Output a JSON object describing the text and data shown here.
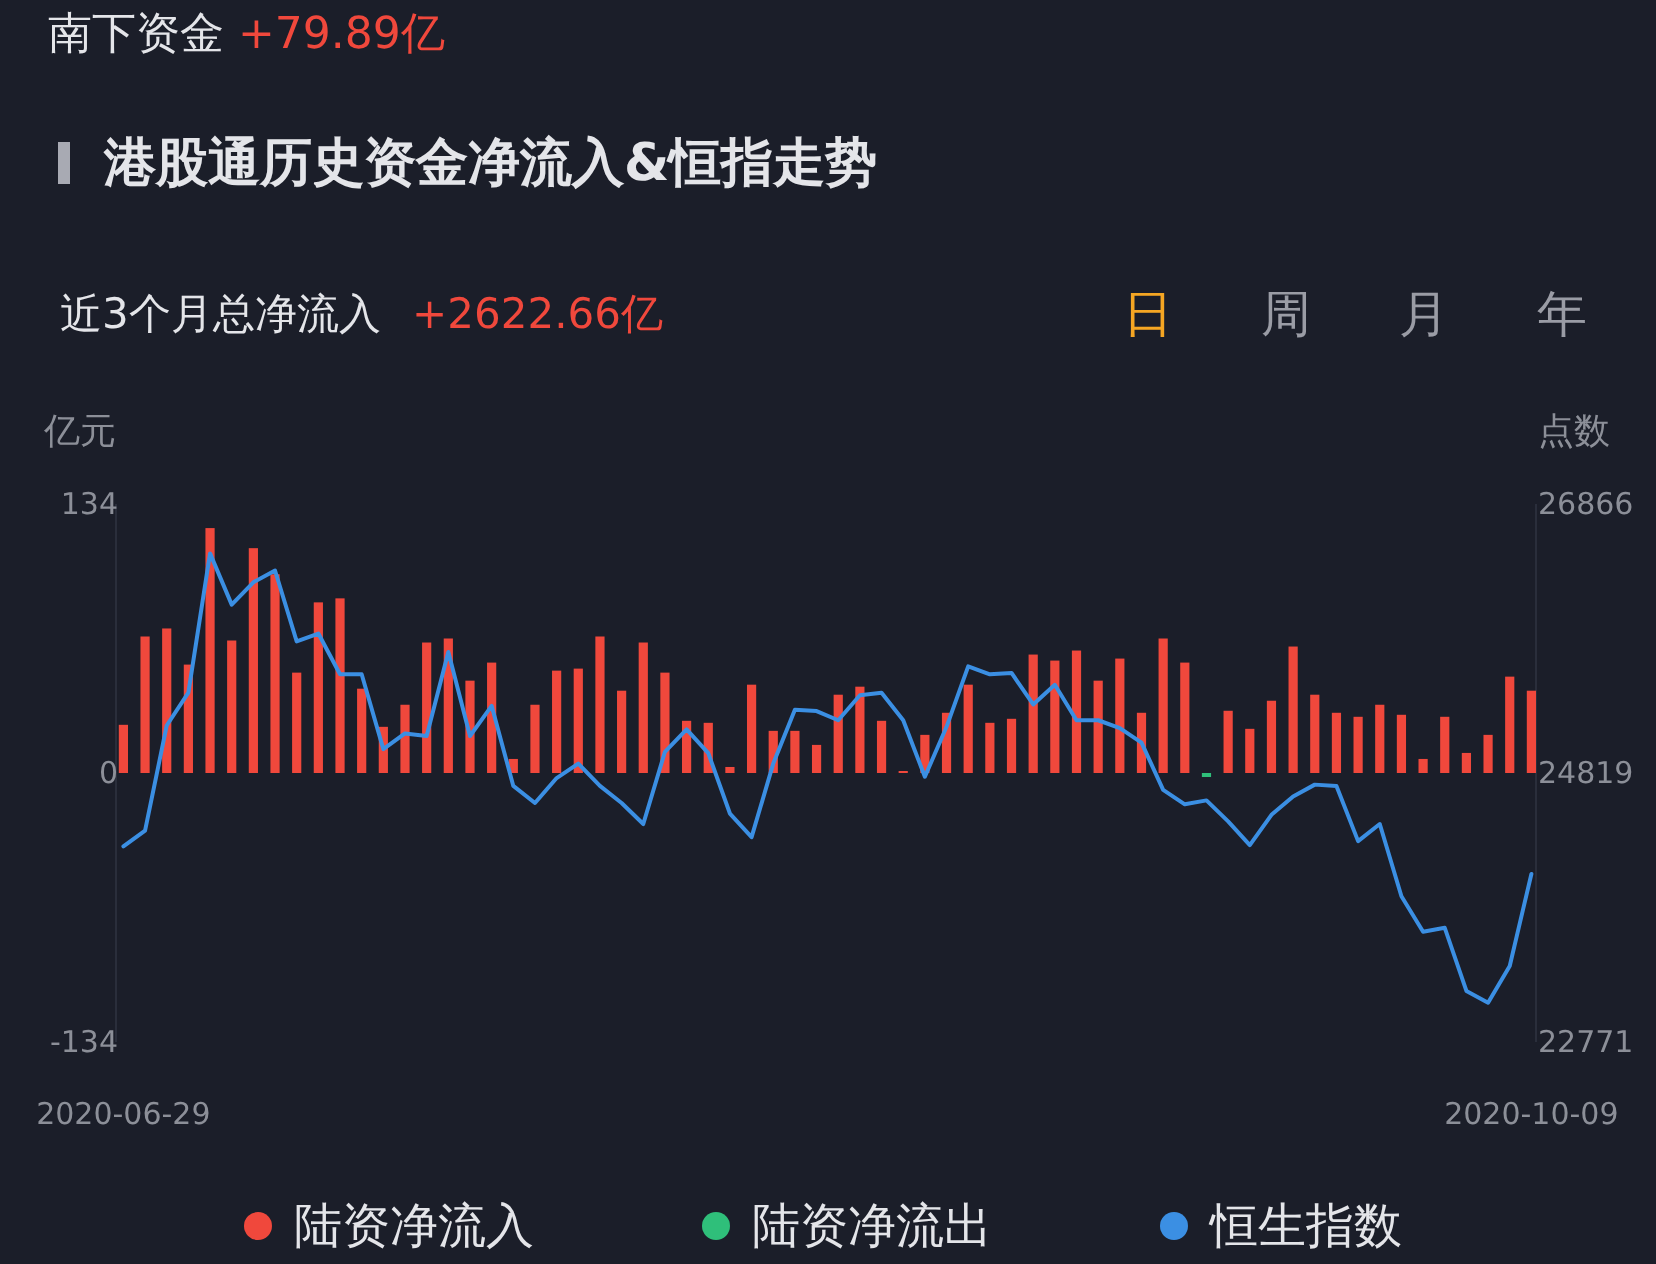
{
  "chart_data": {
    "type": "bar",
    "title": "港股通历史资金净流入&恒指走势",
    "subtitle": "近3个月总净流入 +2622.66亿",
    "annotations": [
      "南下资金 +79.89亿",
      "日",
      "周",
      "月",
      "年"
    ],
    "ylabel": "亿元",
    "y2label": "点数",
    "categories": [
      "2020-06-29",
      null,
      null,
      null,
      null,
      null,
      null,
      null,
      null,
      null,
      null,
      null,
      null,
      null,
      null,
      null,
      null,
      null,
      null,
      null,
      null,
      null,
      null,
      null,
      null,
      null,
      null,
      null,
      null,
      null,
      null,
      null,
      null,
      null,
      null,
      null,
      null,
      null,
      null,
      null,
      null,
      null,
      null,
      null,
      null,
      null,
      null,
      null,
      null,
      null,
      null,
      null,
      null,
      null,
      null,
      null,
      null,
      null,
      null,
      null,
      null,
      null,
      null,
      null,
      null,
      "2020-10-09"
    ],
    "stacked": true,
    "series": [
      {
        "name": "陆资净流入",
        "color": "#f0483c",
        "values": [
          24,
          68,
          72,
          54,
          122,
          66,
          112,
          99,
          50,
          85,
          87,
          42,
          23,
          34,
          65,
          67,
          46,
          55,
          7,
          34,
          51,
          52,
          68,
          41,
          65,
          50,
          26,
          25,
          3,
          44,
          21,
          21,
          14,
          39,
          43,
          26,
          1,
          19,
          30,
          44,
          25,
          27,
          59,
          56,
          61,
          46,
          57,
          30,
          67,
          55,
          null,
          31,
          22,
          36,
          63,
          39,
          30,
          28,
          34,
          29,
          7,
          28,
          10,
          19,
          48,
          41
        ]
      },
      {
        "name": "陆资净流出",
        "color": "#2fbf7a",
        "values": [
          null,
          null,
          null,
          null,
          null,
          null,
          null,
          null,
          null,
          null,
          null,
          null,
          null,
          null,
          null,
          null,
          null,
          null,
          null,
          null,
          null,
          null,
          null,
          null,
          null,
          null,
          null,
          null,
          null,
          null,
          null,
          null,
          null,
          null,
          null,
          null,
          null,
          null,
          null,
          null,
          null,
          null,
          null,
          null,
          null,
          null,
          null,
          null,
          null,
          null,
          -2,
          null,
          null,
          null,
          null,
          null,
          null,
          null,
          null,
          null,
          null,
          null,
          null,
          null,
          null,
          null
        ]
      },
      {
        "name": "恒生指数",
        "type": "line",
        "axis": "y2",
        "color": "#3b8fe3",
        "values": [
          24260,
          24380,
          25180,
          25430,
          26490,
          26100,
          26270,
          26360,
          25820,
          25880,
          25570,
          25570,
          25000,
          25120,
          25100,
          25740,
          25100,
          25330,
          24720,
          24590,
          24780,
          24890,
          24720,
          24590,
          24430,
          24980,
          25150,
          24970,
          24510,
          24330,
          24890,
          25300,
          25290,
          25220,
          25410,
          25430,
          25220,
          24790,
          25170,
          25630,
          25570,
          25580,
          25340,
          25490,
          25220,
          25220,
          25160,
          25050,
          24690,
          24580,
          24610,
          24450,
          24270,
          24500,
          24640,
          24730,
          24720,
          24300,
          24430,
          23880,
          23610,
          23640,
          23160,
          23070,
          23350,
          24050
        ]
      }
    ],
    "ylim": [
      -134,
      134
    ],
    "yticks": [
      -134,
      0,
      134
    ],
    "y2lim": [
      22771,
      26866
    ],
    "y2ticks": [
      22771,
      24819,
      26866
    ],
    "legend": "bottom",
    "grid": false
  }
}
